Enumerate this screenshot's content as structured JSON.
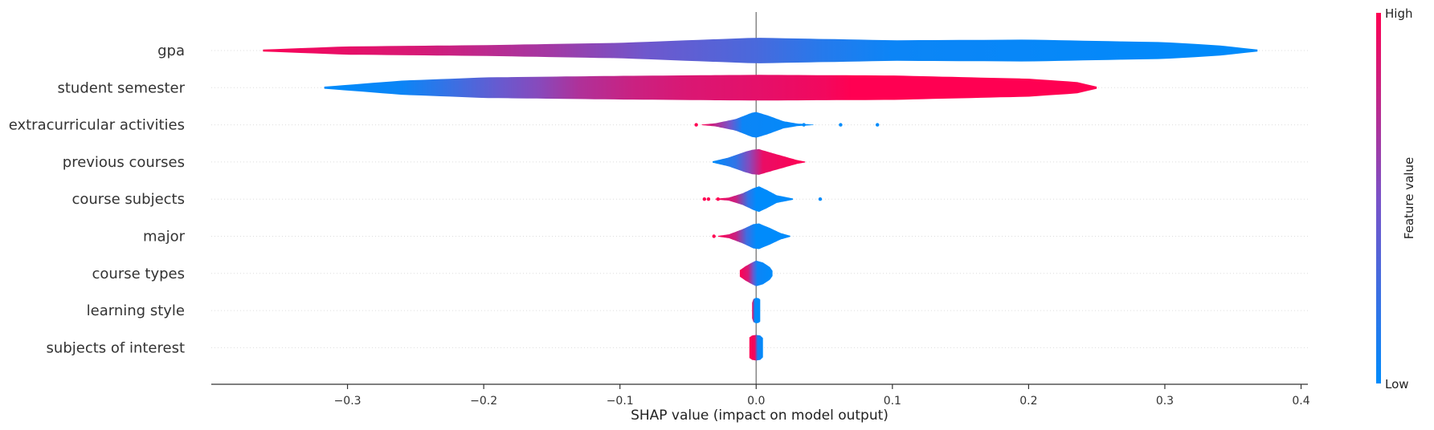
{
  "chart_data": {
    "type": "violin",
    "xlabel": "SHAP value (impact on model output)",
    "xlim": [
      -0.4,
      0.405
    ],
    "xticks": [
      -0.3,
      -0.2,
      -0.1,
      0.0,
      0.1,
      0.2,
      0.3,
      0.4
    ],
    "xtick_labels": [
      "−0.3",
      "−0.2",
      "−0.1",
      "0.0",
      "0.1",
      "0.2",
      "0.3",
      "0.4"
    ],
    "grid": false,
    "colorbar": {
      "label": "Feature value",
      "high_label": "High",
      "low_label": "Low",
      "low_color": "#008bfb",
      "mid_color": "#7a52c8",
      "high_color": "#ff0052"
    },
    "features": [
      {
        "name": "gpa",
        "x_min": -0.362,
        "x_max": 0.368,
        "profile": [
          [
            -0.362,
            0.08
          ],
          [
            -0.3,
            0.32
          ],
          [
            -0.2,
            0.42
          ],
          [
            -0.1,
            0.6
          ],
          [
            -0.05,
            0.8
          ],
          [
            0.0,
            1.0
          ],
          [
            0.05,
            0.9
          ],
          [
            0.1,
            0.8
          ],
          [
            0.2,
            0.85
          ],
          [
            0.3,
            0.65
          ],
          [
            0.34,
            0.4
          ],
          [
            0.368,
            0.08
          ]
        ],
        "colors": [
          [
            -0.362,
            0.98
          ],
          [
            -0.25,
            0.85
          ],
          [
            -0.15,
            0.65
          ],
          [
            -0.08,
            0.45
          ],
          [
            0.0,
            0.3
          ],
          [
            0.05,
            0.15
          ],
          [
            0.1,
            0.05
          ],
          [
            0.368,
            0.0
          ]
        ],
        "outliers": []
      },
      {
        "name": "student semester",
        "x_min": -0.317,
        "x_max": 0.25,
        "profile": [
          [
            -0.317,
            0.08
          ],
          [
            -0.26,
            0.55
          ],
          [
            -0.2,
            0.8
          ],
          [
            -0.1,
            0.92
          ],
          [
            0.0,
            1.0
          ],
          [
            0.1,
            0.95
          ],
          [
            0.2,
            0.7
          ],
          [
            0.235,
            0.45
          ],
          [
            0.25,
            0.08
          ]
        ],
        "colors": [
          [
            -0.317,
            0.0
          ],
          [
            -0.26,
            0.05
          ],
          [
            -0.23,
            0.2
          ],
          [
            -0.19,
            0.42
          ],
          [
            -0.16,
            0.55
          ],
          [
            -0.13,
            0.7
          ],
          [
            -0.09,
            0.8
          ],
          [
            -0.05,
            0.86
          ],
          [
            0.0,
            0.9
          ],
          [
            0.05,
            0.95
          ],
          [
            0.07,
            1.0
          ],
          [
            0.25,
            1.0
          ]
        ],
        "outliers": []
      },
      {
        "name": "extracurricular activities",
        "x_min": -0.04,
        "x_max": 0.042,
        "profile": [
          [
            -0.04,
            0.02
          ],
          [
            -0.03,
            0.12
          ],
          [
            -0.015,
            0.45
          ],
          [
            -0.003,
            0.95
          ],
          [
            0.0,
            1.0
          ],
          [
            0.008,
            0.75
          ],
          [
            0.02,
            0.28
          ],
          [
            0.03,
            0.1
          ],
          [
            0.042,
            0.02
          ]
        ],
        "colors": [
          [
            -0.04,
            1.0
          ],
          [
            -0.02,
            0.5
          ],
          [
            -0.01,
            0.05
          ],
          [
            0.042,
            0.0
          ]
        ],
        "outliers": [
          [
            -0.044,
            1.0
          ],
          [
            0.062,
            0.0
          ],
          [
            0.089,
            0.0
          ],
          [
            0.035,
            0.0
          ]
        ]
      },
      {
        "name": "previous courses",
        "x_min": -0.032,
        "x_max": 0.036,
        "profile": [
          [
            -0.032,
            0.05
          ],
          [
            -0.02,
            0.35
          ],
          [
            -0.008,
            0.8
          ],
          [
            -0.003,
            0.95
          ],
          [
            0.002,
            1.0
          ],
          [
            0.01,
            0.75
          ],
          [
            0.02,
            0.45
          ],
          [
            0.03,
            0.15
          ],
          [
            0.036,
            0.03
          ]
        ],
        "colors": [
          [
            -0.032,
            0.0
          ],
          [
            -0.015,
            0.2
          ],
          [
            -0.005,
            0.55
          ],
          [
            0.005,
            0.92
          ],
          [
            0.036,
            1.0
          ]
        ],
        "outliers": []
      },
      {
        "name": "course subjects",
        "x_min": -0.03,
        "x_max": 0.027,
        "profile": [
          [
            -0.03,
            0.03
          ],
          [
            -0.02,
            0.12
          ],
          [
            -0.01,
            0.45
          ],
          [
            -0.002,
            0.85
          ],
          [
            0.002,
            1.0
          ],
          [
            0.008,
            0.7
          ],
          [
            0.015,
            0.3
          ],
          [
            0.027,
            0.05
          ]
        ],
        "colors": [
          [
            -0.03,
            1.0
          ],
          [
            -0.015,
            0.8
          ],
          [
            -0.006,
            0.2
          ],
          [
            0.0,
            0.0
          ],
          [
            0.027,
            0.0
          ]
        ],
        "outliers": [
          [
            -0.038,
            1.0
          ],
          [
            -0.035,
            1.0
          ],
          [
            -0.028,
            1.0
          ],
          [
            0.047,
            0.0
          ]
        ]
      },
      {
        "name": "major",
        "x_min": -0.028,
        "x_max": 0.025,
        "profile": [
          [
            -0.028,
            0.03
          ],
          [
            -0.02,
            0.15
          ],
          [
            -0.01,
            0.55
          ],
          [
            -0.002,
            0.95
          ],
          [
            0.002,
            1.0
          ],
          [
            0.01,
            0.65
          ],
          [
            0.018,
            0.25
          ],
          [
            0.025,
            0.04
          ]
        ],
        "colors": [
          [
            -0.028,
            1.0
          ],
          [
            -0.015,
            0.8
          ],
          [
            -0.007,
            0.25
          ],
          [
            0.0,
            0.0
          ],
          [
            0.025,
            0.0
          ]
        ],
        "outliers": [
          [
            -0.031,
            1.0
          ]
        ]
      },
      {
        "name": "course types",
        "x_min": -0.012,
        "x_max": 0.012,
        "profile": [
          [
            -0.012,
            0.25
          ],
          [
            -0.008,
            0.55
          ],
          [
            -0.003,
            0.85
          ],
          [
            0.0,
            1.0
          ],
          [
            0.005,
            0.85
          ],
          [
            0.01,
            0.5
          ],
          [
            0.012,
            0.2
          ]
        ],
        "colors": [
          [
            -0.012,
            1.0
          ],
          [
            -0.006,
            0.85
          ],
          [
            -0.002,
            0.4
          ],
          [
            0.001,
            0.05
          ],
          [
            0.012,
            0.0
          ]
        ],
        "outliers": []
      },
      {
        "name": "learning style",
        "x_min": -0.003,
        "x_max": 0.003,
        "profile": [
          [
            -0.003,
            0.6
          ],
          [
            -0.002,
            0.9
          ],
          [
            0.0,
            1.0
          ],
          [
            0.002,
            0.95
          ],
          [
            0.003,
            0.85
          ]
        ],
        "colors": [
          [
            -0.003,
            1.0
          ],
          [
            -0.001,
            0.0
          ],
          [
            0.003,
            0.0
          ]
        ],
        "outliers": []
      },
      {
        "name": "subjects of interest",
        "x_min": -0.005,
        "x_max": 0.005,
        "profile": [
          [
            -0.005,
            0.8
          ],
          [
            -0.003,
            0.95
          ],
          [
            0.0,
            1.0
          ],
          [
            0.003,
            0.95
          ],
          [
            0.005,
            0.75
          ]
        ],
        "colors": [
          [
            -0.005,
            1.0
          ],
          [
            -0.001,
            0.95
          ],
          [
            0.001,
            0.1
          ],
          [
            0.005,
            0.0
          ]
        ],
        "outliers": []
      }
    ]
  }
}
